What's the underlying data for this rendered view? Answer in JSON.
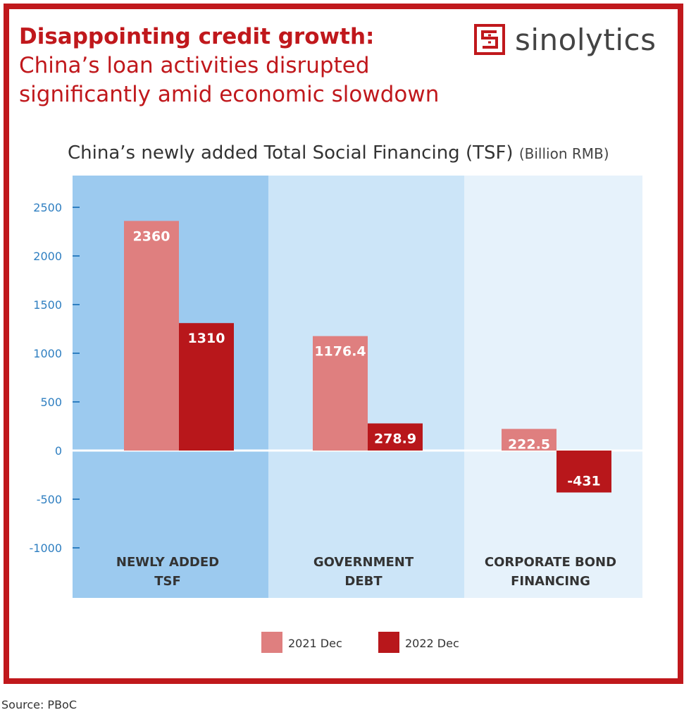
{
  "header": {
    "headline_lead": "Disappointing credit growth:",
    "headline_rest": " China’s loan activities disrupted significantly amid economic slowdown",
    "logo_text": "sinolytics"
  },
  "chart_data": {
    "type": "bar",
    "title": "China’s newly added Total Social Financing (TSF)",
    "unit": "(Billion RMB)",
    "categories": [
      [
        "NEWLY ADDED",
        "TSF"
      ],
      [
        "GOVERNMENT",
        "DEBT"
      ],
      [
        "CORPORATE BOND",
        "FINANCING"
      ]
    ],
    "series": [
      {
        "name": "2021 Dec",
        "values": [
          2360,
          1176.4,
          222.5
        ],
        "labels": [
          "2360",
          "1176.4",
          "222.5"
        ],
        "color": "#df7f7f"
      },
      {
        "name": "2022 Dec",
        "values": [
          1310,
          278.9,
          -431
        ],
        "labels": [
          "1310",
          "278.9",
          "-431"
        ],
        "color": "#b8171b"
      }
    ],
    "yticks": [
      2500,
      2000,
      1500,
      1000,
      500,
      0,
      -500,
      -1000
    ],
    "ylim": [
      -1000,
      2500
    ],
    "panel_colors": [
      "#9ccaef",
      "#cce5f8",
      "#e6f2fb"
    ],
    "axis_color": "#2f7fc1",
    "legend_position": "bottom-center",
    "grid": false
  },
  "footer": {
    "source": "Source: PBoC"
  }
}
